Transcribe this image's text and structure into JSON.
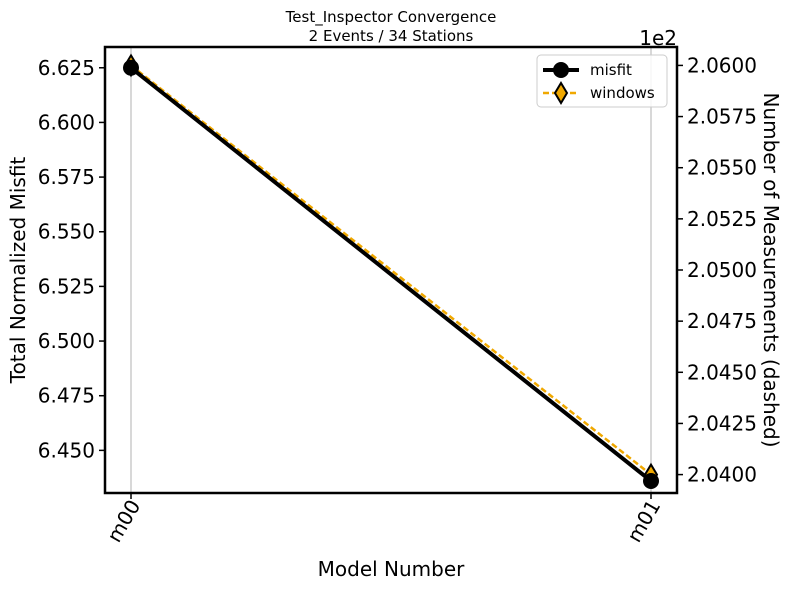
{
  "chart_data": {
    "type": "line",
    "title": "Test_Inspector Convergence",
    "subtitle": "2 Events / 34 Stations",
    "xlabel": "Model Number",
    "ylabel": "Total Normalized Misfit",
    "y2label": "Number of Measurements (dashed)",
    "y2_offset_text": "1e2",
    "categories": [
      "m00",
      "m01"
    ],
    "ylim": [
      6.4305,
      6.6345
    ],
    "y2lim": [
      2.0391,
      2.0609
    ],
    "yticks": [
      6.45,
      6.475,
      6.5,
      6.525,
      6.55,
      6.575,
      6.6,
      6.625
    ],
    "ytick_labels": [
      "6.450",
      "6.475",
      "6.500",
      "6.525",
      "6.550",
      "6.575",
      "6.600",
      "6.625"
    ],
    "y2ticks": [
      2.04,
      2.0425,
      2.045,
      2.0475,
      2.05,
      2.0525,
      2.055,
      2.0575,
      2.06
    ],
    "y2tick_labels": [
      "2.0400",
      "2.0425",
      "2.0450",
      "2.0475",
      "2.0500",
      "2.0525",
      "2.0550",
      "2.0575",
      "2.0600"
    ],
    "grid": "x",
    "legend_position": "upper-right",
    "series": [
      {
        "name": "misfit",
        "axis": "left",
        "values": [
          6.625,
          6.436
        ],
        "color": "#000000",
        "style": "solid",
        "marker": "circle"
      },
      {
        "name": "windows",
        "axis": "right",
        "values": [
          2.06,
          2.04
        ],
        "color": "#f0a800",
        "style": "dashed",
        "marker": "diamond",
        "marker_face": "#f0a800",
        "marker_edge": "#000000"
      }
    ]
  }
}
